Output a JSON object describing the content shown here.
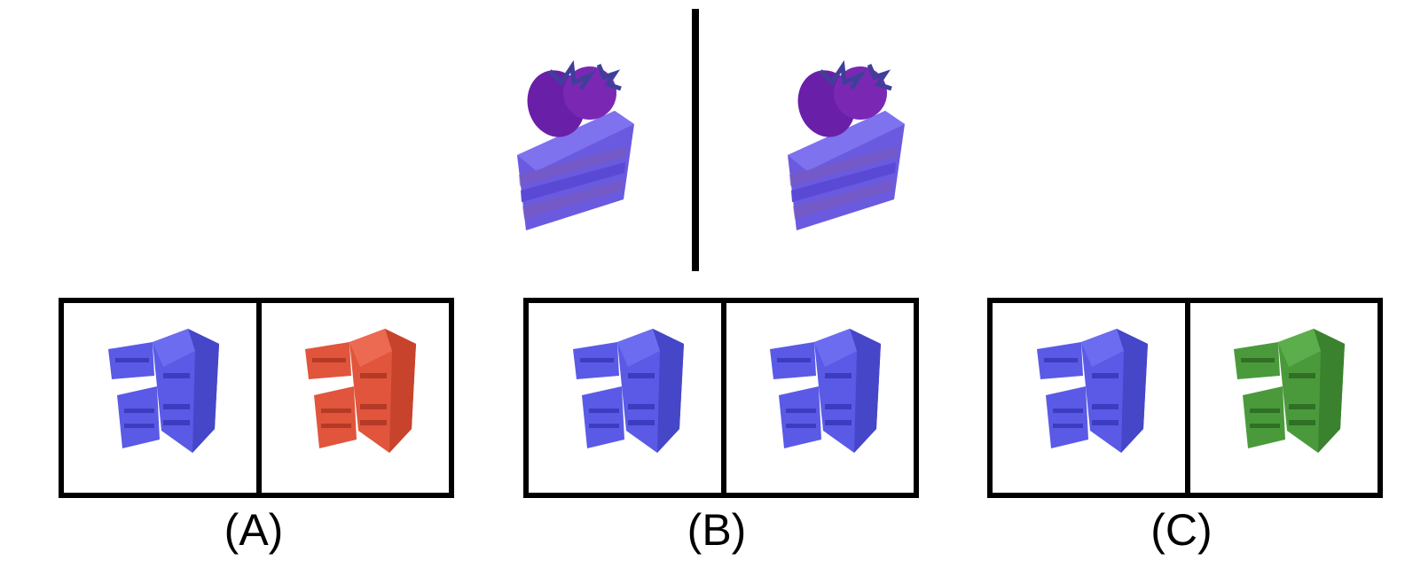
{
  "reference": {
    "left": {
      "object": "strawberry-cake-slice",
      "color": "#6a5ae0"
    },
    "right": {
      "object": "strawberry-cake-slice",
      "color": "#6a5ae0"
    }
  },
  "options": [
    {
      "label": "(A)",
      "left_color": "#5a5ae6",
      "right_color": "#e0553c"
    },
    {
      "label": "(B)",
      "left_color": "#5a5ae6",
      "right_color": "#5a5ae6"
    },
    {
      "label": "(C)",
      "left_color": "#5a5ae6",
      "right_color": "#4a9a3c"
    }
  ],
  "colors": {
    "berry": "#6a1fa8",
    "leaf": "#3f3f9a",
    "cake_band": "#7a5ab8"
  }
}
